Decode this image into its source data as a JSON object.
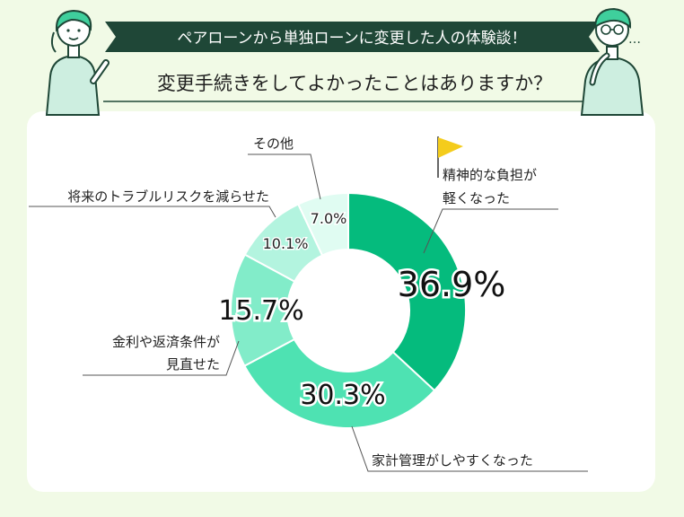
{
  "header": {
    "banner": "ペアローンから単独ローンに変更した人の体験談！",
    "question": "変更手続きをしてよかったことはありますか？"
  },
  "colors": {
    "page_bg": "#f1fae6",
    "card_bg": "#ffffff",
    "banner_bg": "#1f4737",
    "flag": "#f4cc1c",
    "slices": [
      "#05bb7d",
      "#4ee2b2",
      "#82ecc9",
      "#b3f4df",
      "#e0fcf2"
    ]
  },
  "chart_data": {
    "type": "pie",
    "variant": "donut",
    "title": "",
    "categories": [
      "精神的な負担が軽くなった",
      "家計管理がしやすくなった",
      "金利や返済条件が見直せた",
      "将来のトラブルリスクを減らせた",
      "その他"
    ],
    "values": [
      36.9,
      30.3,
      15.7,
      10.1,
      7.0
    ],
    "value_labels": [
      "36.9%",
      "30.3%",
      "15.7%",
      "10.1%",
      "7.0%"
    ],
    "label_lines": [
      [
        "精神的な負担が",
        "軽くなった"
      ],
      [
        "家計管理がしやすくなった"
      ],
      [
        "金利や返済条件が",
        "見直せた"
      ],
      [
        "将来のトラブルリスクを減らせた"
      ],
      [
        "その他"
      ]
    ]
  }
}
